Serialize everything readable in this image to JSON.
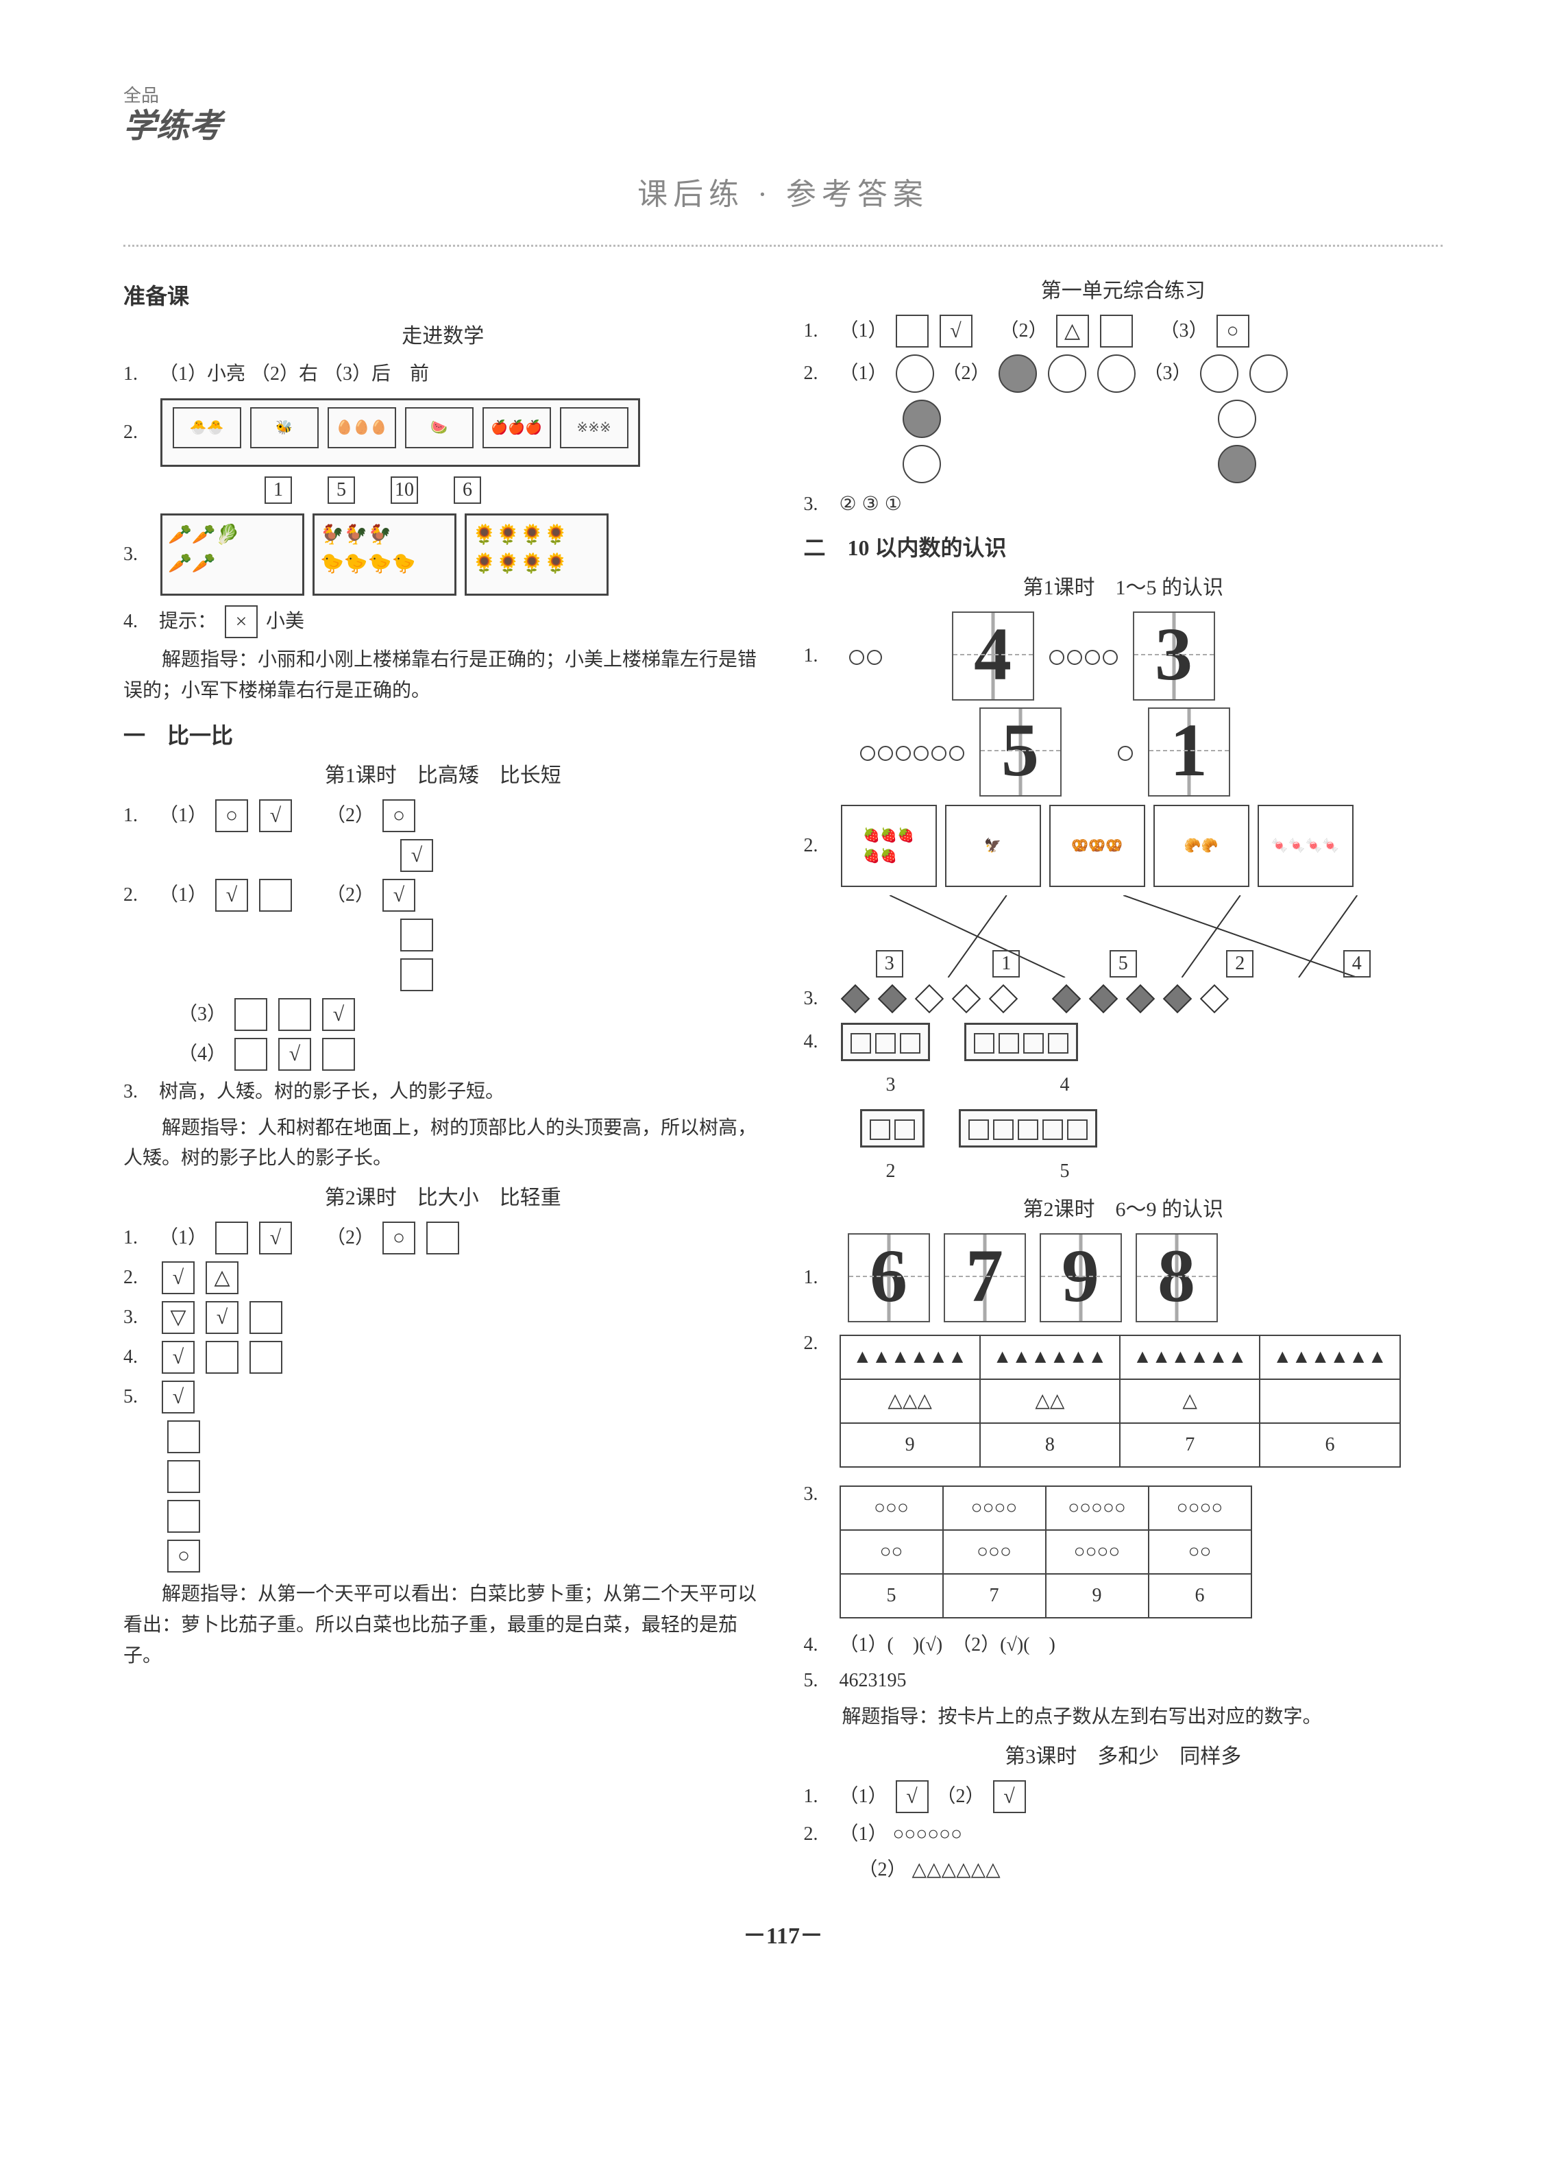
{
  "logo": {
    "small": "全品",
    "main": "学练考"
  },
  "page_title": "课后练 · 参考答案",
  "page_number": "－117－",
  "left_col": {
    "prep": {
      "header": "准备课",
      "sub": "走进数学",
      "q1": {
        "num": "1.",
        "parts": [
          "（1）小亮",
          "（2）右",
          "（3）后　前"
        ]
      },
      "q2": {
        "num": "2.",
        "bottom_nums": [
          "1",
          "5",
          "10",
          "6"
        ]
      },
      "q3": {
        "num": "3."
      },
      "q4": {
        "num": "4.",
        "hint_label": "提示：",
        "hint_symbol": "×",
        "hint_name": "小美",
        "explain_label": "解题指导：",
        "explain": "小丽和小刚上楼梯靠右行是正确的；小美上楼梯靠左行是错误的；小军下楼梯靠右行是正确的。"
      }
    },
    "unit1": {
      "header": "一　比一比",
      "lesson1": {
        "sub": "第1课时　比高矮　比长短",
        "q1": {
          "num": "1.",
          "p1_label": "（1）",
          "p1_boxes": [
            "○",
            "√"
          ],
          "p2_label": "（2）",
          "p2_boxes": [
            "○",
            "",
            "√"
          ]
        },
        "q2": {
          "num": "2.",
          "p1_label": "（1）",
          "p1_boxes": [
            "√",
            ""
          ],
          "p2_label": "（2）",
          "p2_boxes": [
            "√",
            "",
            ""
          ],
          "p3_label": "（3）",
          "p3_boxes": [
            "",
            "",
            "√"
          ],
          "p4_label": "（4）",
          "p4_boxes": [
            "",
            "√",
            ""
          ]
        },
        "q3": {
          "num": "3.",
          "text": "树高，人矮。树的影子长，人的影子短。",
          "explain_label": "解题指导：",
          "explain": "人和树都在地面上，树的顶部比人的头顶要高，所以树高，人矮。树的影子比人的影子长。"
        }
      },
      "lesson2": {
        "sub": "第2课时　比大小　比轻重",
        "q1": {
          "num": "1.",
          "p1_label": "（1）",
          "p1_boxes": [
            "",
            "√"
          ],
          "p2_label": "（2）",
          "p2_boxes": [
            "○",
            ""
          ]
        },
        "q2": {
          "num": "2.",
          "boxes": [
            "√",
            "△"
          ]
        },
        "q3": {
          "num": "3.",
          "boxes": [
            "▽",
            "√",
            ""
          ]
        },
        "q4": {
          "num": "4.",
          "boxes": [
            "√",
            "",
            ""
          ]
        },
        "q5": {
          "num": "5.",
          "boxes": [
            "√",
            "",
            "",
            "",
            "○"
          ],
          "explain_label": "解题指导：",
          "explain": "从第一个天平可以看出：白菜比萝卜重；从第二个天平可以看出：萝卜比茄子重。所以白菜也比茄子重，最重的是白菜，最轻的是茄子。"
        }
      }
    }
  },
  "right_col": {
    "unit1_practice": {
      "sub": "第一单元综合练习",
      "q1": {
        "num": "1.",
        "p1_label": "（1）",
        "p1_boxes": [
          "",
          "√"
        ],
        "p2_label": "（2）",
        "p2_boxes": [
          "△",
          ""
        ],
        "p3_label": "（3）",
        "p3_boxes": [
          "○"
        ]
      },
      "q2": {
        "num": "2.",
        "p1_label": "（1）",
        "p2_label": "（2）",
        "p3_label": "（3）"
      },
      "q3": {
        "num": "3.",
        "answers": [
          "②",
          "③",
          "①"
        ]
      }
    },
    "unit2": {
      "header": "二　10 以内数的认识",
      "lesson1": {
        "sub": "第1课时　1～5 的认识",
        "q1": {
          "num": "1.",
          "row1_digits": [
            "4",
            "3"
          ],
          "row2_digits": [
            "5",
            "1"
          ],
          "row1_circle_count": 2,
          "row1_circle2_count": 4,
          "row2_circle_count": 6,
          "row2_circle2_count": 1
        },
        "q2": {
          "num": "2.",
          "bottom_nums": [
            "3",
            "1",
            "5",
            "2",
            "4"
          ]
        },
        "q3": {
          "num": "3."
        },
        "q4": {
          "num": "4.",
          "row1": {
            "group1_sq": 3,
            "group1_val": "3",
            "group2_sq": 4,
            "group2_val": "4"
          },
          "row2": {
            "group1_sq": 2,
            "group1_val": "2",
            "group2_sq": 5,
            "group2_val": "5"
          }
        }
      },
      "lesson2": {
        "sub": "第2课时　6～9 的认识",
        "q1": {
          "num": "1.",
          "digits": [
            "6",
            "7",
            "9",
            "8"
          ]
        },
        "q2": {
          "num": "2.",
          "counts": [
            9,
            8,
            7,
            6
          ],
          "filled_rows": [
            [
              6,
              3
            ],
            [
              6,
              2
            ],
            [
              6,
              1
            ],
            [
              6,
              0
            ]
          ],
          "values": [
            "9",
            "8",
            "7",
            "6"
          ]
        },
        "q3": {
          "num": "3.",
          "top_counts": [
            3,
            4,
            5,
            4
          ],
          "bot_counts": [
            2,
            3,
            4,
            2
          ],
          "values": [
            "5",
            "7",
            "9",
            "6"
          ]
        },
        "q4": {
          "num": "4.",
          "text": "（1）(　)(√)　（2）(√)(　)"
        },
        "q5": {
          "num": "5.",
          "answer": "4623195",
          "explain_label": "解题指导：",
          "explain": "按卡片上的点子数从左到右写出对应的数字。"
        }
      },
      "lesson3": {
        "sub": "第3课时　多和少　同样多",
        "q1": {
          "num": "1.",
          "p1_label": "（1）",
          "p1_box": "√",
          "p2_label": "（2）",
          "p2_box": "√"
        },
        "q2": {
          "num": "2.",
          "line1_label": "（1）",
          "line1_shapes": "○○○○○○",
          "line2_label": "（2）",
          "line2_shapes": "△△△△△△"
        }
      }
    }
  }
}
